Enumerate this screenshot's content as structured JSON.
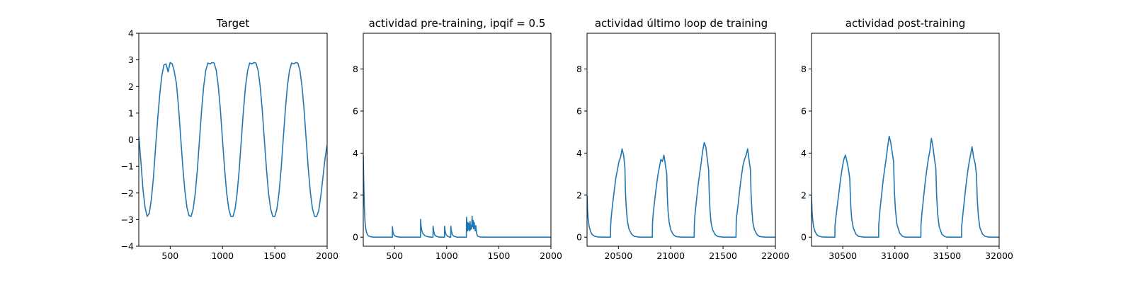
{
  "chart_data": [
    {
      "type": "line",
      "title": "Target",
      "xlabel": "",
      "ylabel": "",
      "xlim": [
        200,
        2000
      ],
      "ylim": [
        -4,
        4
      ],
      "x_ticks": [
        500,
        1000,
        1500,
        2000
      ],
      "y_ticks": [
        -4,
        -3,
        -2,
        -1,
        0,
        1,
        2,
        3,
        4
      ],
      "color": "#1f77b4",
      "grid": false,
      "series": [
        {
          "name": "target",
          "x": [
            200,
            220,
            240,
            260,
            280,
            300,
            320,
            340,
            360,
            380,
            400,
            420,
            440,
            460,
            480,
            500,
            520,
            540,
            560,
            580,
            600,
            620,
            640,
            660,
            680,
            700,
            720,
            740,
            760,
            780,
            800,
            820,
            840,
            860,
            880,
            900,
            920,
            940,
            960,
            980,
            1000,
            1020,
            1040,
            1060,
            1080,
            1100,
            1120,
            1140,
            1160,
            1180,
            1200,
            1220,
            1240,
            1260,
            1280,
            1300,
            1320,
            1340,
            1360,
            1380,
            1400,
            1420,
            1440,
            1460,
            1480,
            1500,
            1520,
            1540,
            1560,
            1580,
            1600,
            1620,
            1640,
            1660,
            1680,
            1700,
            1720,
            1740,
            1760,
            1780,
            1800,
            1820,
            1840,
            1860,
            1880,
            1900,
            1920,
            1940,
            1960,
            1980,
            2000
          ],
          "y": [
            0.13,
            -0.82,
            -1.87,
            -2.55,
            -2.88,
            -2.77,
            -2.24,
            -1.41,
            -0.32,
            0.75,
            1.7,
            2.4,
            2.81,
            2.85,
            2.55,
            2.9,
            2.85,
            2.55,
            2.1,
            1.2,
            0.1,
            -1.0,
            -1.9,
            -2.55,
            -2.85,
            -2.88,
            -2.6,
            -2.0,
            -1.1,
            0.0,
            1.1,
            2.0,
            2.6,
            2.88,
            2.85,
            2.9,
            2.88,
            2.6,
            2.0,
            1.1,
            0.0,
            -1.1,
            -2.0,
            -2.6,
            -2.88,
            -2.88,
            -2.6,
            -2.0,
            -1.1,
            0.0,
            1.1,
            2.0,
            2.6,
            2.88,
            2.85,
            2.9,
            2.88,
            2.6,
            2.0,
            1.1,
            0.0,
            -1.1,
            -2.0,
            -2.6,
            -2.88,
            -2.88,
            -2.6,
            -2.0,
            -1.1,
            0.0,
            1.1,
            2.0,
            2.6,
            2.88,
            2.85,
            2.9,
            2.88,
            2.6,
            2.0,
            1.1,
            0.0,
            -1.1,
            -2.0,
            -2.6,
            -2.88,
            -2.88,
            -2.65,
            -2.1,
            -1.4,
            -0.7,
            -0.2
          ]
        }
      ]
    },
    {
      "type": "line",
      "title": "actividad pre-training, ipqif = 0.5",
      "xlabel": "",
      "ylabel": "",
      "xlim": [
        200,
        2000
      ],
      "ylim": [
        -0.43,
        9.7
      ],
      "x_ticks": [
        500,
        1000,
        1500,
        2000
      ],
      "y_ticks": [
        0,
        2,
        4,
        6,
        8
      ],
      "color": "#1f77b4",
      "grid": false,
      "series": [
        {
          "name": "pre-training",
          "x": [
            200,
            205,
            210,
            215,
            220,
            230,
            240,
            250,
            270,
            300,
            350,
            400,
            450,
            479,
            480,
            484,
            490,
            500,
            520,
            550,
            600,
            650,
            700,
            749,
            750,
            754,
            760,
            770,
            790,
            820,
            850,
            869,
            870,
            875,
            885,
            900,
            930,
            960,
            979,
            980,
            985,
            995,
            1010,
            1030,
            1039,
            1040,
            1045,
            1055,
            1070,
            1100,
            1150,
            1180,
            1189,
            1190,
            1196,
            1200,
            1204,
            1209,
            1214,
            1219,
            1224,
            1229,
            1234,
            1239,
            1244,
            1249,
            1254,
            1259,
            1264,
            1269,
            1274,
            1279,
            1284,
            1289,
            1295,
            1300,
            1320,
            1350,
            1400,
            1500,
            1600,
            1700,
            1800,
            1900,
            2000
          ],
          "y": [
            3.9,
            2.6,
            1.5,
            0.9,
            0.55,
            0.25,
            0.12,
            0.06,
            0.02,
            0,
            0,
            0,
            0,
            0,
            0.5,
            0.28,
            0.15,
            0.07,
            0.02,
            0,
            0,
            0,
            0,
            0,
            0.85,
            0.55,
            0.35,
            0.18,
            0.07,
            0.02,
            0,
            0,
            0.52,
            0.3,
            0.12,
            0.04,
            0,
            0,
            0,
            0.52,
            0.3,
            0.12,
            0.04,
            0,
            0,
            0.52,
            0.3,
            0.12,
            0.04,
            0,
            0,
            0,
            0,
            0.95,
            0.45,
            0.3,
            0.7,
            0.35,
            0.65,
            0.3,
            0.75,
            0.35,
            0.55,
            0.4,
            1.0,
            0.5,
            0.8,
            0.4,
            0.7,
            0.5,
            0.3,
            0.55,
            0.3,
            0.15,
            0.08,
            0.04,
            0.01,
            0,
            0,
            0,
            0,
            0,
            0,
            0,
            0
          ]
        }
      ]
    },
    {
      "type": "line",
      "title": "actividad último loop de training",
      "xlabel": "",
      "ylabel": "",
      "xlim": [
        20200,
        22000
      ],
      "ylim": [
        -0.43,
        9.7
      ],
      "x_ticks": [
        20500,
        21000,
        21500,
        22000
      ],
      "y_ticks": [
        0,
        2,
        4,
        6,
        8
      ],
      "color": "#1f77b4",
      "grid": false,
      "series": [
        {
          "name": "último loop",
          "x": [
            20200,
            20205,
            20210,
            20220,
            20235,
            20250,
            20270,
            20300,
            20350,
            20400,
            20424,
            20425,
            20430,
            20445,
            20460,
            20475,
            20490,
            20505,
            20520,
            20535,
            20550,
            20562,
            20567,
            20575,
            20585,
            20600,
            20625,
            20650,
            20700,
            20750,
            20800,
            20824,
            20825,
            20830,
            20845,
            20860,
            20875,
            20890,
            20905,
            20920,
            20935,
            20950,
            20962,
            20967,
            20975,
            20985,
            21000,
            21025,
            21050,
            21100,
            21150,
            21200,
            21224,
            21225,
            21230,
            21245,
            21260,
            21275,
            21290,
            21305,
            21320,
            21335,
            21350,
            21362,
            21367,
            21375,
            21385,
            21400,
            21425,
            21450,
            21500,
            21550,
            21600,
            21624,
            21625,
            21630,
            21645,
            21660,
            21675,
            21690,
            21705,
            21720,
            21735,
            21750,
            21762,
            21767,
            21775,
            21785,
            21800,
            21825,
            21850,
            21900,
            21950,
            22000
          ],
          "y": [
            2.0,
            1.3,
            0.9,
            0.5,
            0.25,
            0.12,
            0.05,
            0.01,
            0,
            0,
            0,
            0.5,
            0.9,
            1.6,
            2.2,
            2.8,
            3.2,
            3.6,
            3.8,
            4.2,
            3.9,
            3.3,
            2.2,
            1.4,
            0.8,
            0.4,
            0.15,
            0.04,
            0,
            0,
            0,
            0,
            0.6,
            1.0,
            1.7,
            2.3,
            2.9,
            3.3,
            3.7,
            3.6,
            3.9,
            3.4,
            3.0,
            2.0,
            1.2,
            0.7,
            0.35,
            0.12,
            0.03,
            0,
            0,
            0,
            0,
            0.6,
            1.0,
            1.7,
            2.4,
            3.0,
            3.5,
            4.1,
            4.5,
            4.3,
            3.7,
            3.2,
            2.2,
            1.3,
            0.7,
            0.35,
            0.12,
            0.03,
            0,
            0,
            0,
            0,
            0.6,
            1.0,
            1.6,
            2.3,
            2.9,
            3.4,
            3.7,
            3.9,
            4.2,
            3.6,
            3.2,
            2.1,
            1.3,
            0.7,
            0.35,
            0.12,
            0.03,
            0,
            0,
            0
          ]
        }
      ]
    },
    {
      "type": "line",
      "title": "actividad post-training",
      "xlabel": "",
      "ylabel": "",
      "xlim": [
        30200,
        32000
      ],
      "ylim": [
        -0.43,
        9.7
      ],
      "x_ticks": [
        30500,
        31000,
        31500,
        32000
      ],
      "y_ticks": [
        0,
        2,
        4,
        6,
        8
      ],
      "color": "#1f77b4",
      "grid": false,
      "series": [
        {
          "name": "post-training",
          "x": [
            30200,
            30205,
            30210,
            30220,
            30235,
            30250,
            30270,
            30300,
            30350,
            30400,
            30424,
            30425,
            30435,
            30450,
            30465,
            30480,
            30495,
            30510,
            30525,
            30540,
            30555,
            30567,
            30575,
            30585,
            30600,
            30625,
            30650,
            30700,
            30750,
            30800,
            30844,
            30845,
            30855,
            30870,
            30885,
            30900,
            30915,
            30930,
            30945,
            30960,
            30975,
            30987,
            30995,
            31005,
            31020,
            31045,
            31070,
            31100,
            31150,
            31200,
            31249,
            31250,
            31260,
            31275,
            31290,
            31305,
            31320,
            31335,
            31350,
            31365,
            31380,
            31392,
            31400,
            31410,
            31425,
            31450,
            31475,
            31500,
            31550,
            31600,
            31639,
            31640,
            31650,
            31665,
            31680,
            31695,
            31710,
            31725,
            31740,
            31755,
            31770,
            31782,
            31790,
            31800,
            31815,
            31840,
            31865,
            31900,
            31950,
            32000
          ],
          "y": [
            2.0,
            1.3,
            0.9,
            0.5,
            0.25,
            0.12,
            0.05,
            0.01,
            0,
            0,
            0,
            0.5,
            1.0,
            1.6,
            2.2,
            2.8,
            3.3,
            3.7,
            3.9,
            3.6,
            3.2,
            2.8,
            1.6,
            0.9,
            0.45,
            0.15,
            0.04,
            0,
            0,
            0,
            0,
            0.6,
            1.2,
            1.9,
            2.6,
            3.2,
            3.7,
            4.3,
            4.8,
            4.5,
            4.0,
            3.6,
            2.2,
            1.3,
            0.6,
            0.2,
            0.05,
            0,
            0,
            0,
            0,
            0.6,
            1.2,
            1.9,
            2.6,
            3.2,
            3.7,
            4.1,
            4.7,
            4.3,
            3.7,
            3.3,
            2.0,
            1.1,
            0.5,
            0.15,
            0.04,
            0,
            0,
            0,
            0,
            0.5,
            1.0,
            1.7,
            2.4,
            3.0,
            3.5,
            3.9,
            4.3,
            3.8,
            3.5,
            3.0,
            1.8,
            1.0,
            0.45,
            0.15,
            0.04,
            0,
            0,
            0
          ]
        }
      ]
    }
  ]
}
